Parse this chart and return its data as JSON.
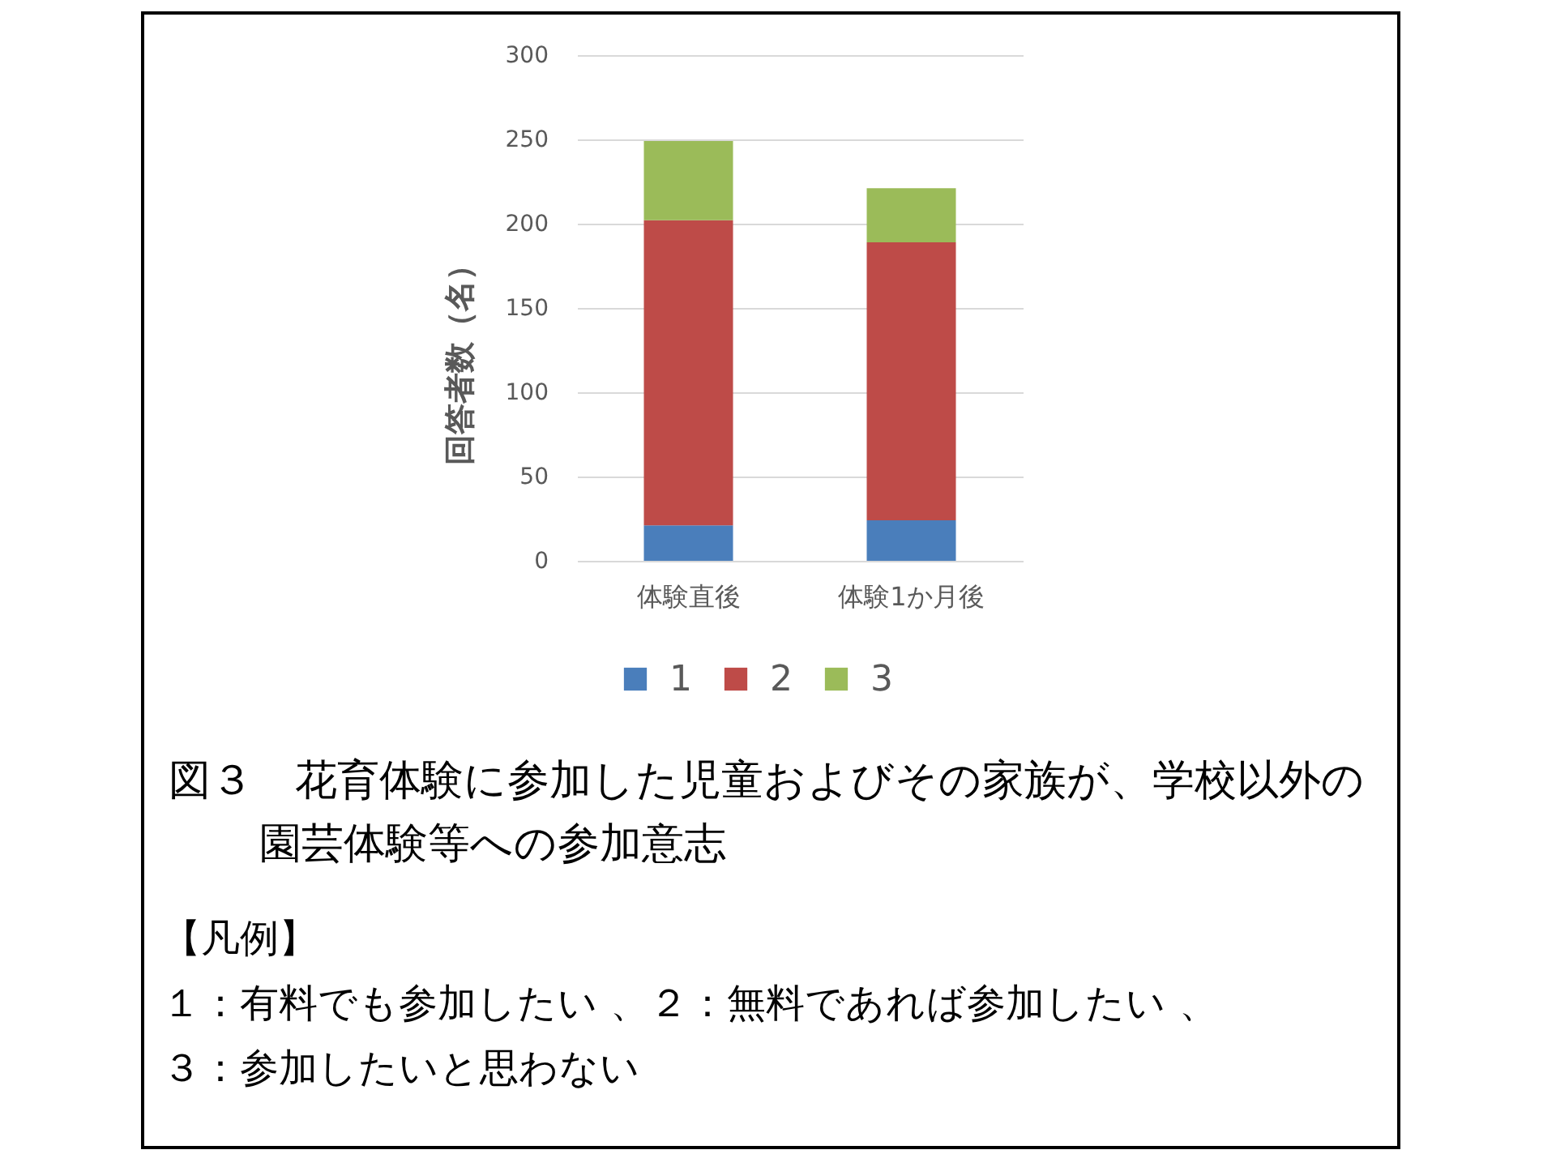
{
  "chart_data": {
    "type": "bar",
    "stacked": true,
    "title": "図３　花育体験に参加した児童およびその家族が、学校以外の園芸体験等への参加意志",
    "ylabel": "回答者数（名）",
    "categories": [
      "体験直後",
      "体験1か月後"
    ],
    "series": [
      {
        "name": "1",
        "color": "#4a7ebb",
        "values": [
          21,
          24
        ]
      },
      {
        "name": "2",
        "color": "#be4b48",
        "values": [
          181,
          165
        ]
      },
      {
        "name": "3",
        "color": "#9bbb59",
        "values": [
          47,
          32
        ]
      }
    ],
    "ylim": [
      0,
      300
    ],
    "yticks": [
      0,
      50,
      100,
      150,
      200,
      250,
      300
    ],
    "grid": "y",
    "legend": "bottom",
    "annotations": [
      "【凡例】",
      "１：有料でも参加したい 、２：無料であれば参加したい 、",
      "３：参加したいと思わない"
    ]
  }
}
